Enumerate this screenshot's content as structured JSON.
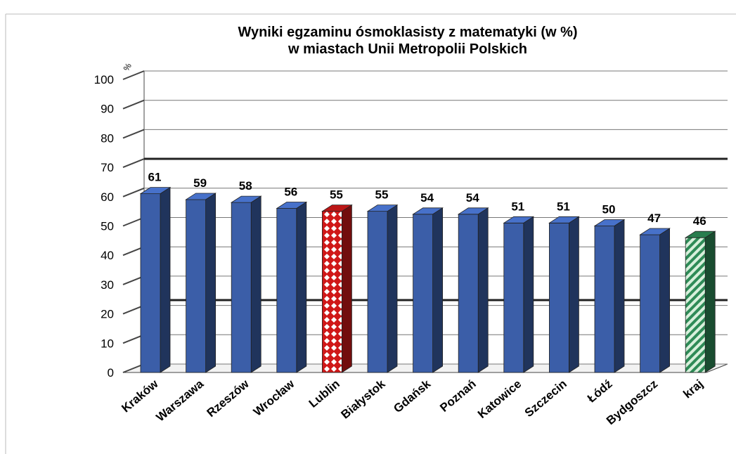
{
  "chart_data": {
    "type": "bar",
    "title": [
      "Wyniki egzaminu ósmoklasisty z matematyki (w %)",
      "w miastach Unii Metropolii Polskich"
    ],
    "y_unit_label": "%",
    "categories": [
      "Kraków",
      "Warszawa",
      "Rzeszów",
      "Wrocław",
      "Lublin",
      "Białystok",
      "Gdańsk",
      "Poznań",
      "Katowice",
      "Szczecin",
      "Łódź",
      "Bydgoszcz",
      "kraj"
    ],
    "values": [
      61,
      59,
      58,
      56,
      55,
      55,
      54,
      54,
      51,
      51,
      50,
      47,
      46
    ],
    "bar_colors": [
      "#3b5ea8",
      "#3b5ea8",
      "#3b5ea8",
      "#3b5ea8",
      "#d01818",
      "#3b5ea8",
      "#3b5ea8",
      "#3b5ea8",
      "#3b5ea8",
      "#3b5ea8",
      "#3b5ea8",
      "#3b5ea8",
      "#2e8b57"
    ],
    "bar_patterns": [
      "solid",
      "solid",
      "solid",
      "solid",
      "diamonds",
      "solid",
      "solid",
      "solid",
      "solid",
      "solid",
      "solid",
      "solid",
      "stripes"
    ],
    "ylim": [
      0,
      100
    ],
    "yticks": [
      0,
      10,
      20,
      30,
      40,
      50,
      60,
      70,
      80,
      90,
      100
    ],
    "grid": true
  }
}
